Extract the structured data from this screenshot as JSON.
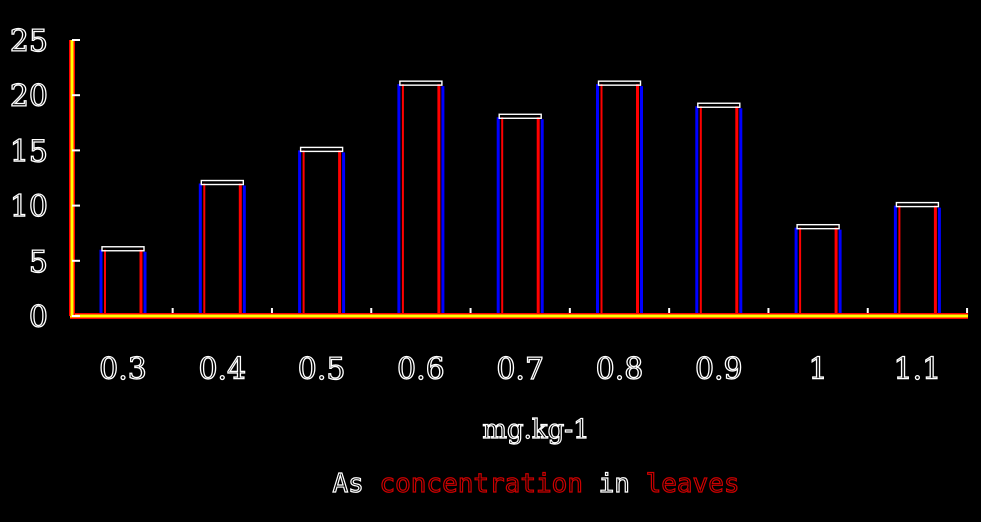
{
  "chart_data": {
    "type": "bar",
    "categories": [
      "0.3",
      "0.4",
      "0.5",
      "0.6",
      "0.7",
      "0.8",
      "0.9",
      "1",
      "1.1"
    ],
    "values": [
      6,
      12,
      15,
      21,
      18,
      21,
      19,
      8,
      10
    ],
    "title": "",
    "xlabel": "mg.kg-1",
    "subtitle_parts": [
      "As ",
      "concentration",
      " in ",
      "leaves"
    ],
    "ylabel": "",
    "ylim": [
      0,
      25
    ],
    "yticks": [
      0,
      5,
      10,
      15,
      20,
      25
    ],
    "grid": false,
    "legend": "none"
  },
  "colors": {
    "background": "#000000",
    "axis": "#ffff00",
    "axis_glow": "#ff0000",
    "bar_left": "#0000ff",
    "bar_right": "#ff0000",
    "bar_top": "#ffffff",
    "text": "#ffffff",
    "subtitle_highlight": "#cc0000"
  }
}
